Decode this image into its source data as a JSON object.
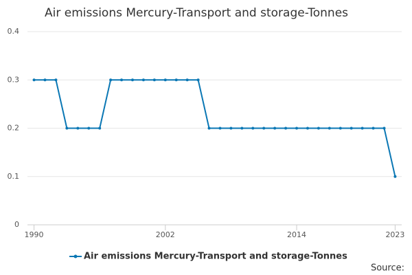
{
  "chart_data": {
    "type": "line",
    "title": "Air emissions Mercury-Transport and storage-Tonnes",
    "x": [
      1990,
      1991,
      1992,
      1993,
      1994,
      1995,
      1996,
      1997,
      1998,
      1999,
      2000,
      2001,
      2002,
      2003,
      2004,
      2005,
      2006,
      2007,
      2008,
      2009,
      2010,
      2011,
      2012,
      2013,
      2014,
      2015,
      2016,
      2017,
      2018,
      2019,
      2020,
      2021,
      2022,
      2023
    ],
    "series": [
      {
        "name": "Air emissions Mercury-Transport and storage-Tonnes",
        "color": "#0a77b4",
        "values": [
          0.3,
          0.3,
          0.3,
          0.2,
          0.2,
          0.2,
          0.2,
          0.3,
          0.3,
          0.3,
          0.3,
          0.3,
          0.3,
          0.3,
          0.3,
          0.3,
          0.2,
          0.2,
          0.2,
          0.2,
          0.2,
          0.2,
          0.2,
          0.2,
          0.2,
          0.2,
          0.2,
          0.2,
          0.2,
          0.2,
          0.2,
          0.2,
          0.2,
          0.1
        ]
      }
    ],
    "xlim": [
      1989.4,
      2023.6
    ],
    "xticks": [
      1990,
      2002,
      2014,
      2023
    ],
    "ylim": [
      0,
      0.4
    ],
    "yticks": [
      0,
      0.1,
      0.2,
      0.3,
      0.4
    ],
    "grid": true,
    "source": "Source:"
  }
}
